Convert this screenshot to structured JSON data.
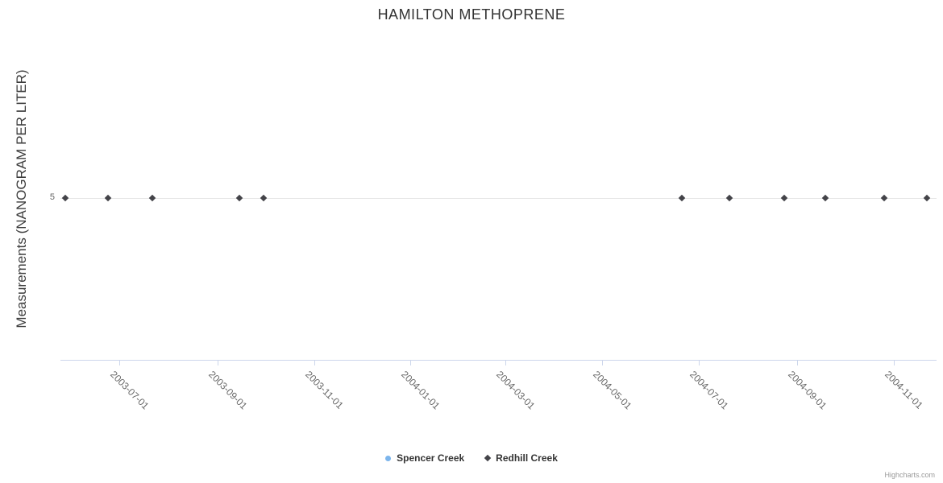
{
  "title": "HAMILTON METHOPRENE",
  "credits": "Highcharts.com",
  "chart_data": {
    "type": "scatter",
    "title": "HAMILTON METHOPRENE",
    "xlabel": "",
    "ylabel": "Measurements (NANOGRAM PER LITER)",
    "x_type": "datetime",
    "x_range": [
      "2003-05-25",
      "2004-11-28"
    ],
    "ylim": [
      0,
      10
    ],
    "y_ticks": [
      5
    ],
    "x_ticks": [
      "2003-07-01",
      "2003-09-01",
      "2003-11-01",
      "2004-01-01",
      "2004-03-01",
      "2004-05-01",
      "2004-07-01",
      "2004-09-01",
      "2004-11-01"
    ],
    "grid": "horizontal-only",
    "legend_position": "bottom-center",
    "series": [
      {
        "name": "Spencer Creek",
        "color": "#7cb5ec",
        "marker": "circle",
        "points": []
      },
      {
        "name": "Redhill Creek",
        "color": "#434348",
        "marker": "diamond",
        "points": [
          {
            "x": "2003-05-28",
            "y": 5
          },
          {
            "x": "2003-06-24",
            "y": 5
          },
          {
            "x": "2003-07-22",
            "y": 5
          },
          {
            "x": "2003-09-15",
            "y": 5
          },
          {
            "x": "2003-09-30",
            "y": 5
          },
          {
            "x": "2004-06-20",
            "y": 5
          },
          {
            "x": "2004-07-20",
            "y": 5
          },
          {
            "x": "2004-08-24",
            "y": 5
          },
          {
            "x": "2004-09-19",
            "y": 5
          },
          {
            "x": "2004-10-26",
            "y": 5
          },
          {
            "x": "2004-11-22",
            "y": 5
          }
        ]
      }
    ]
  }
}
